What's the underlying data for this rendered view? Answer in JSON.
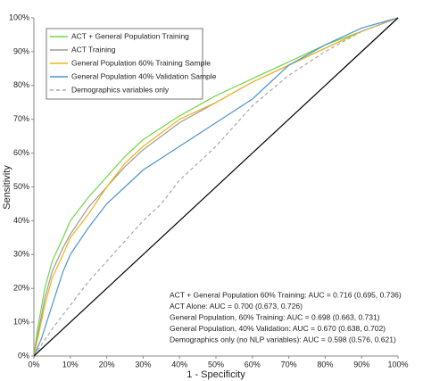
{
  "chart_data": {
    "type": "line",
    "xlabel": "1 - Specificity",
    "ylabel": "Sensitivity",
    "xlim": [
      0,
      100
    ],
    "ylim": [
      0,
      100
    ],
    "xticks": [
      {
        "value": 0,
        "label": "0%"
      },
      {
        "value": 10,
        "label": "10%"
      },
      {
        "value": 20,
        "label": "20%"
      },
      {
        "value": 30,
        "label": "30%"
      },
      {
        "value": 40,
        "label": "40%"
      },
      {
        "value": 50,
        "label": "50%"
      },
      {
        "value": 60,
        "label": "60%"
      },
      {
        "value": 70,
        "label": "70%"
      },
      {
        "value": 80,
        "label": "80%"
      },
      {
        "value": 90,
        "label": "90%"
      },
      {
        "value": 100,
        "label": "100%"
      }
    ],
    "yticks": [
      {
        "value": 0,
        "label": "0%"
      },
      {
        "value": 10,
        "label": "10%"
      },
      {
        "value": 20,
        "label": "20%"
      },
      {
        "value": 30,
        "label": "30%"
      },
      {
        "value": 40,
        "label": "40%"
      },
      {
        "value": 50,
        "label": "50%"
      },
      {
        "value": 60,
        "label": "60%"
      },
      {
        "value": 70,
        "label": "70%"
      },
      {
        "value": 80,
        "label": "80%"
      },
      {
        "value": 90,
        "label": "90%"
      },
      {
        "value": 100,
        "label": "100%"
      }
    ],
    "legend": "upper left",
    "series": [
      {
        "name": "ACT + General Population Training",
        "color": "#6fd64a",
        "dashed": false,
        "x": [
          0,
          1,
          3,
          5,
          8,
          10,
          15,
          20,
          25,
          30,
          40,
          50,
          60,
          70,
          80,
          90,
          100
        ],
        "values": [
          0,
          8,
          20,
          28,
          35,
          40,
          47,
          53,
          59,
          64,
          71,
          77,
          82,
          87,
          92,
          96,
          100
        ]
      },
      {
        "name": "ACT Training",
        "color": "#9a9a9a",
        "dashed": false,
        "x": [
          0,
          1,
          3,
          5,
          8,
          10,
          15,
          20,
          25,
          30,
          40,
          50,
          60,
          70,
          80,
          90,
          100
        ],
        "values": [
          0,
          6,
          17,
          25,
          32,
          36,
          44,
          50,
          56,
          61,
          69,
          75,
          81,
          86,
          91,
          96,
          100
        ]
      },
      {
        "name": "General Population 60% Training Sample",
        "color": "#f2b21c",
        "dashed": false,
        "x": [
          0,
          1,
          3,
          5,
          8,
          10,
          15,
          20,
          25,
          30,
          40,
          50,
          60,
          70,
          80,
          90,
          100
        ],
        "values": [
          0,
          5,
          15,
          23,
          30,
          35,
          42,
          50,
          57,
          62,
          70,
          75,
          81,
          86,
          91,
          96,
          100
        ]
      },
      {
        "name": "General Population 40% Validation Sample",
        "color": "#4f94c8",
        "dashed": false,
        "x": [
          0,
          2,
          5,
          8,
          10,
          15,
          20,
          25,
          30,
          40,
          50,
          60,
          65,
          70,
          80,
          90,
          100
        ],
        "values": [
          0,
          5,
          15,
          25,
          30,
          38,
          45,
          50,
          55,
          62,
          69,
          76,
          81,
          86,
          92,
          97,
          100
        ]
      },
      {
        "name": "Demographics variables only",
        "color": "#a8a8a8",
        "dashed": true,
        "x": [
          0,
          5,
          10,
          15,
          20,
          25,
          30,
          35,
          40,
          45,
          50,
          55,
          60,
          70,
          80,
          90,
          100
        ],
        "values": [
          0,
          8,
          15,
          22,
          28,
          34,
          40,
          45,
          52,
          57,
          62,
          68,
          74,
          83,
          90,
          96,
          100
        ]
      },
      {
        "color": "#000000",
        "dashed": false,
        "x": [
          0,
          100
        ],
        "values": [
          0,
          100
        ]
      }
    ],
    "annotations": [
      "ACT + General Population 60% Training: AUC = 0.716 (0.695, 0.736)",
      "ACT Alone: AUC = 0.700 (0.673, 0.726)",
      "General Population, 60% Training: AUC = 0.698 (0.663, 0.731)",
      "General Population, 40% Validation: AUC = 0.670 (0.638, 0.702)",
      "Demographics only (no NLP variables): AUC = 0.598 (0.576, 0.621)"
    ]
  }
}
